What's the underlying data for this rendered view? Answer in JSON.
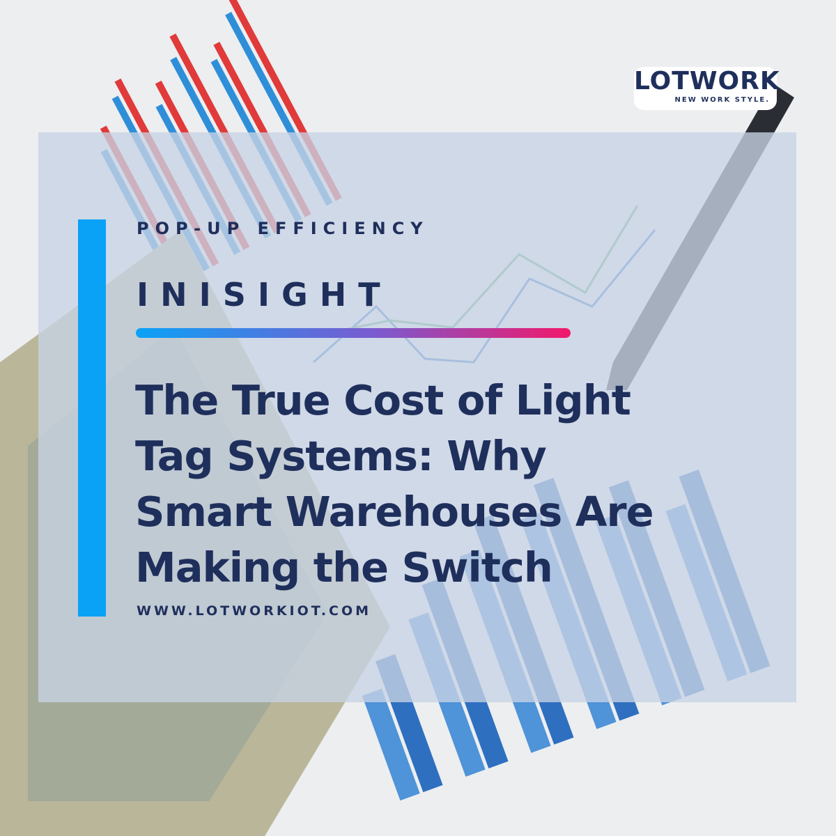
{
  "logo": {
    "name": "LOTWORK",
    "tagline": "NEW WORK STYLE."
  },
  "kicker": "POP-UP EFFICIENCY",
  "label": "INISIGHT",
  "title_lines": [
    "The True Cost of Light",
    "Tag Systems: Why",
    "Smart Warehouses Are",
    "Making the Switch"
  ],
  "url": "WWW.LOTWORKIOT.COM"
}
